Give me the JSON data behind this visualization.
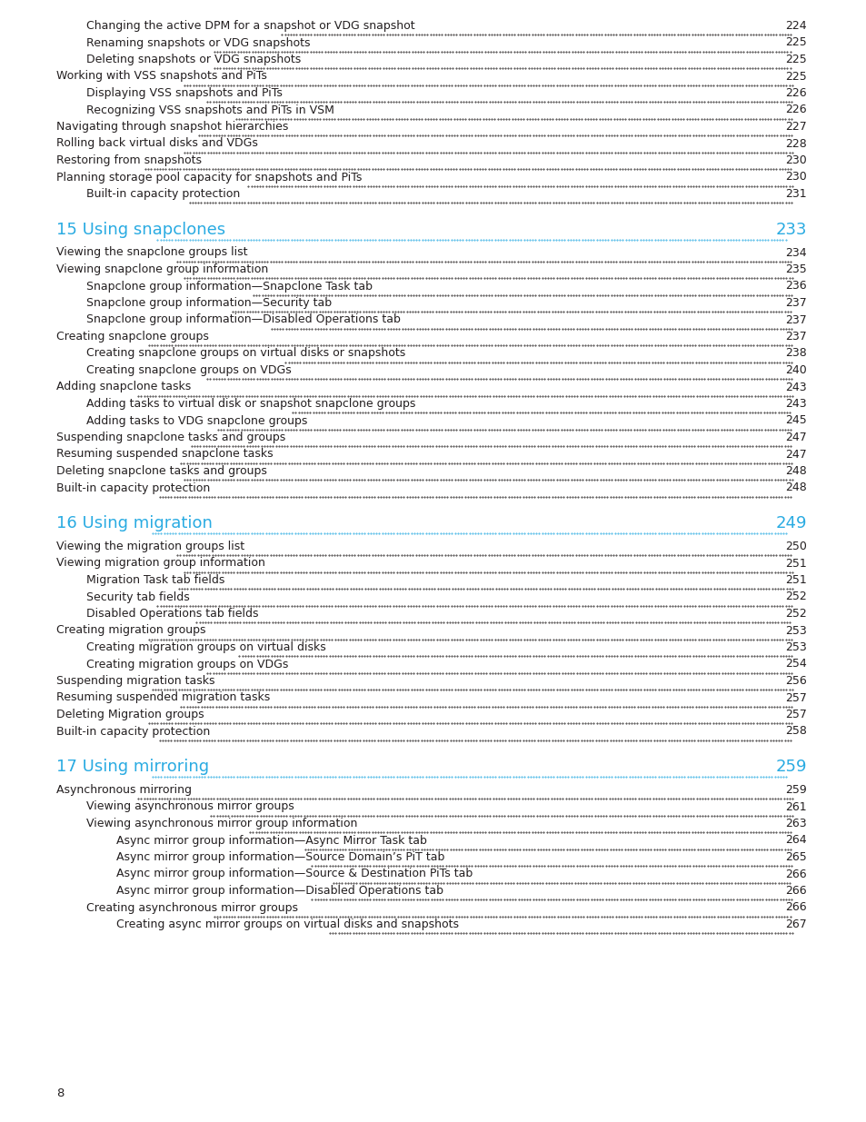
{
  "background_color": "#ffffff",
  "page_number": "8",
  "cyan_color": "#29abe2",
  "text_color": "#231f20",
  "sections": [
    {
      "type": "continuation",
      "entries": [
        {
          "indent": 2,
          "text": "Changing the active DPM for a snapshot or VDG snapshot",
          "page": "224"
        },
        {
          "indent": 2,
          "text": "Renaming snapshots or VDG snapshots",
          "page": "225"
        },
        {
          "indent": 2,
          "text": "Deleting snapshots or VDG snapshots",
          "page": "225"
        },
        {
          "indent": 1,
          "text": "Working with VSS snapshots and PiTs",
          "page": "225"
        },
        {
          "indent": 2,
          "text": "Displaying VSS snapshots and PiTs",
          "page": "226"
        },
        {
          "indent": 2,
          "text": "Recognizing VSS snapshots and PiTs in VSM",
          "page": "226"
        },
        {
          "indent": 1,
          "text": "Navigating through snapshot hierarchies",
          "page": "227"
        },
        {
          "indent": 1,
          "text": "Rolling back virtual disks and VDGs",
          "page": "228"
        },
        {
          "indent": 1,
          "text": "Restoring from snapshots",
          "page": "230"
        },
        {
          "indent": 1,
          "text": "Planning storage pool capacity for snapshots and PiTs",
          "page": "230"
        },
        {
          "indent": 2,
          "text": "Built-in capacity protection",
          "page": "231"
        }
      ]
    },
    {
      "type": "chapter",
      "title": "15 Using snapclones",
      "page": "233",
      "entries": [
        {
          "indent": 1,
          "text": "Viewing the snapclone groups list",
          "page": "234"
        },
        {
          "indent": 1,
          "text": "Viewing snapclone group information",
          "page": "235"
        },
        {
          "indent": 2,
          "text": "Snapclone group information—Snapclone Task tab",
          "page": "236"
        },
        {
          "indent": 2,
          "text": "Snapclone group information—Security tab",
          "page": "237"
        },
        {
          "indent": 2,
          "text": "Snapclone group information—Disabled Operations tab",
          "page": "237"
        },
        {
          "indent": 1,
          "text": "Creating snapclone groups",
          "page": "237"
        },
        {
          "indent": 2,
          "text": "Creating snapclone groups on virtual disks or snapshots",
          "page": "238"
        },
        {
          "indent": 2,
          "text": "Creating snapclone groups on VDGs",
          "page": "240"
        },
        {
          "indent": 1,
          "text": "Adding snapclone tasks",
          "page": "243"
        },
        {
          "indent": 2,
          "text": "Adding tasks to virtual disk or snapshot snapclone groups",
          "page": "243"
        },
        {
          "indent": 2,
          "text": "Adding tasks to VDG snapclone groups",
          "page": "245"
        },
        {
          "indent": 1,
          "text": "Suspending snapclone tasks and groups",
          "page": "247"
        },
        {
          "indent": 1,
          "text": "Resuming suspended snapclone tasks",
          "page": "247"
        },
        {
          "indent": 1,
          "text": "Deleting snapclone tasks and groups",
          "page": "248"
        },
        {
          "indent": 1,
          "text": "Built-in capacity protection",
          "page": "248"
        }
      ]
    },
    {
      "type": "chapter",
      "title": "16 Using migration",
      "page": "249",
      "entries": [
        {
          "indent": 1,
          "text": "Viewing the migration groups list",
          "page": "250"
        },
        {
          "indent": 1,
          "text": "Viewing migration group information",
          "page": "251"
        },
        {
          "indent": 2,
          "text": "Migration Task tab fields",
          "page": "251"
        },
        {
          "indent": 2,
          "text": "Security tab fields",
          "page": "252"
        },
        {
          "indent": 2,
          "text": "Disabled Operations tab fields",
          "page": "252"
        },
        {
          "indent": 1,
          "text": "Creating migration groups",
          "page": "253"
        },
        {
          "indent": 2,
          "text": "Creating migration groups on virtual disks",
          "page": "253"
        },
        {
          "indent": 2,
          "text": "Creating migration groups on VDGs",
          "page": "254"
        },
        {
          "indent": 1,
          "text": "Suspending migration tasks",
          "page": "256"
        },
        {
          "indent": 1,
          "text": "Resuming suspended migration tasks",
          "page": "257"
        },
        {
          "indent": 1,
          "text": "Deleting Migration groups",
          "page": "257"
        },
        {
          "indent": 1,
          "text": "Built-in capacity protection",
          "page": "258"
        }
      ]
    },
    {
      "type": "chapter",
      "title": "17 Using mirroring",
      "page": "259",
      "entries": [
        {
          "indent": 1,
          "text": "Asynchronous mirroring",
          "page": "259"
        },
        {
          "indent": 2,
          "text": "Viewing asynchronous mirror groups",
          "page": "261"
        },
        {
          "indent": 2,
          "text": "Viewing asynchronous mirror group information",
          "page": "263"
        },
        {
          "indent": 3,
          "text": "Async mirror group information—Async Mirror Task tab",
          "page": "264"
        },
        {
          "indent": 3,
          "text": "Async mirror group information—Source Domain’s PiT tab",
          "page": "265"
        },
        {
          "indent": 3,
          "text": "Async mirror group information—Source & Destination PiTs tab",
          "page": "266"
        },
        {
          "indent": 3,
          "text": "Async mirror group information—Disabled Operations tab",
          "page": "266"
        },
        {
          "indent": 2,
          "text": "Creating asynchronous mirror groups",
          "page": "266"
        },
        {
          "indent": 3,
          "text": "Creating async mirror groups on virtual disks and snapshots",
          "page": "267"
        }
      ]
    }
  ]
}
